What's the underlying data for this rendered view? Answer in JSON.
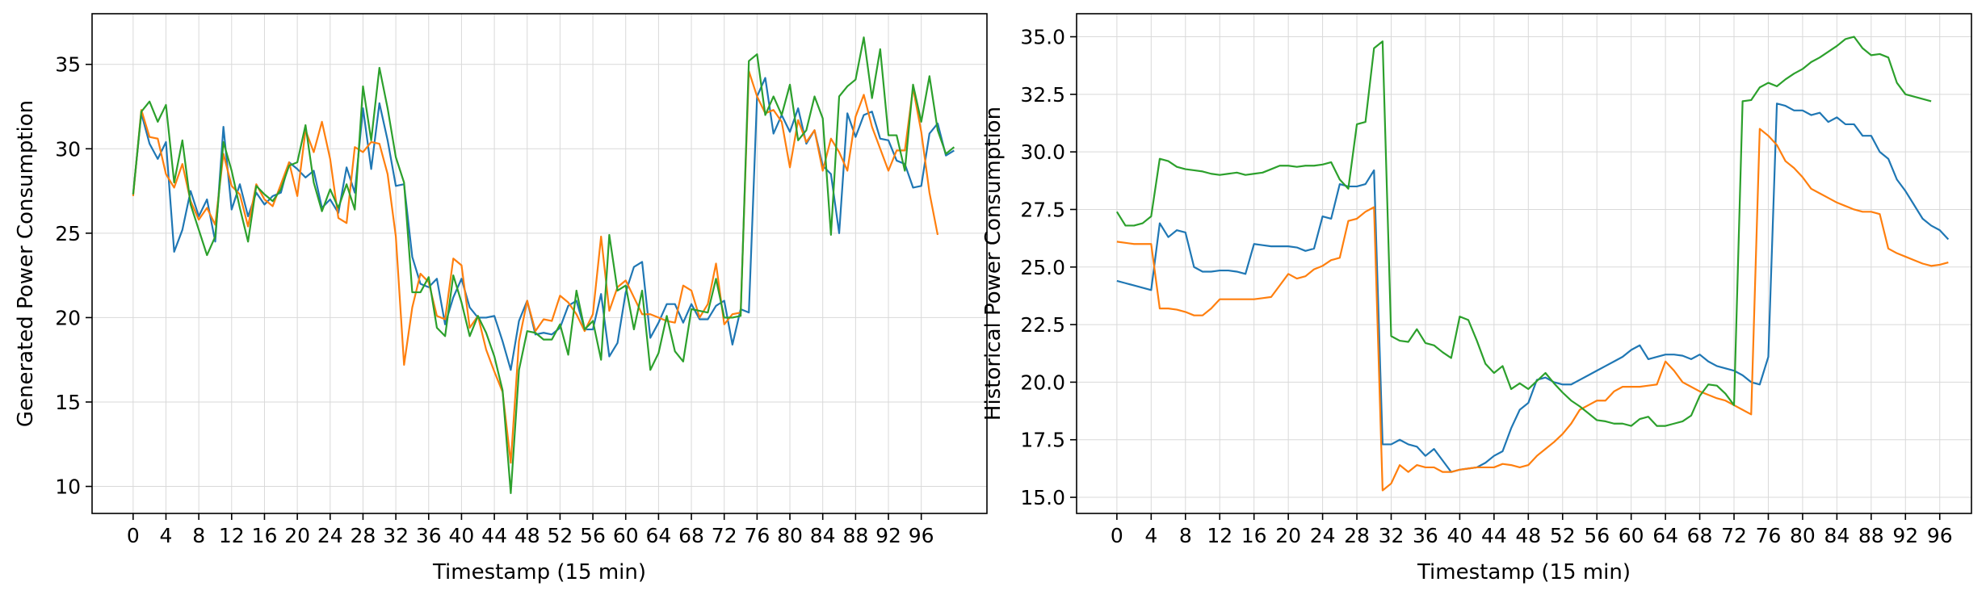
{
  "chart_data": [
    {
      "type": "line",
      "xlabel": "Timestamp (15 min)",
      "ylabel": "Generated Power Consumption",
      "xlim": [
        -5,
        104
      ],
      "ylim": [
        8.4,
        38
      ],
      "x_ticks": [
        0,
        4,
        8,
        12,
        16,
        20,
        24,
        28,
        32,
        36,
        40,
        44,
        48,
        52,
        56,
        60,
        64,
        68,
        72,
        76,
        80,
        84,
        88,
        92,
        96
      ],
      "y_ticks": [
        10,
        15,
        20,
        25,
        30,
        35
      ],
      "grid": true,
      "series": [
        {
          "color": "#1f77b4",
          "values": [
            27.3,
            32.1,
            30.3,
            29.4,
            30.4,
            23.9,
            25.2,
            27.5,
            26.0,
            27.0,
            24.5,
            31.3,
            26.4,
            27.9,
            26.0,
            27.4,
            26.7,
            27.2,
            27.4,
            29.2,
            28.8,
            28.3,
            28.7,
            26.5,
            27.0,
            26.2,
            28.9,
            27.4,
            32.4,
            28.8,
            32.7,
            30.5,
            27.8,
            27.9,
            23.6,
            22.0,
            21.8,
            22.3,
            19.6,
            21.2,
            22.3,
            20.6,
            20.0,
            20.0,
            20.1,
            18.6,
            16.9,
            19.8,
            21.0,
            19.0,
            19.1,
            19.0,
            19.4,
            20.7,
            21.0,
            19.3,
            19.3,
            21.4,
            17.7,
            18.5,
            21.5,
            23.0,
            23.3,
            18.8,
            19.7,
            20.8,
            20.8,
            19.7,
            20.8,
            19.9,
            19.9,
            20.7,
            21.0,
            18.4,
            20.5,
            20.3,
            33.1,
            34.2,
            30.9,
            32.0,
            31.0,
            32.4,
            30.3,
            31.1,
            29.0,
            28.5,
            25.0,
            32.1,
            30.7,
            32.0,
            32.2,
            30.6,
            30.5,
            29.3,
            29.1,
            27.7,
            27.8,
            30.9,
            31.5,
            29.6,
            29.9
          ]
        },
        {
          "color": "#ff7f0e",
          "values": [
            27.2,
            32.3,
            30.7,
            30.6,
            28.5,
            27.7,
            29.1,
            26.9,
            25.8,
            26.5,
            25.5,
            29.7,
            27.8,
            27.3,
            25.4,
            27.9,
            27.0,
            26.6,
            27.9,
            29.2,
            27.2,
            31.1,
            29.8,
            31.6,
            29.4,
            25.9,
            25.6,
            30.1,
            29.8,
            30.4,
            30.3,
            28.5,
            24.8,
            17.2,
            20.6,
            22.6,
            22.1,
            20.1,
            19.9,
            23.5,
            23.1,
            19.4,
            20.1,
            18.1,
            16.8,
            15.6,
            11.4,
            18.6,
            21.0,
            19.2,
            19.9,
            19.8,
            21.3,
            20.9,
            20.2,
            19.2,
            20.2,
            24.8,
            20.4,
            21.8,
            22.2,
            21.2,
            20.2,
            20.2,
            20.0,
            19.8,
            19.7,
            21.9,
            21.6,
            20.0,
            20.8,
            23.2,
            19.6,
            20.2,
            20.3,
            34.6,
            33.1,
            32.1,
            32.3,
            31.6,
            28.9,
            31.7,
            30.4,
            31.1,
            28.7,
            30.6,
            29.8,
            28.7,
            31.9,
            33.2,
            31.3,
            30.0,
            28.7,
            29.9,
            29.9,
            33.6,
            31.0,
            27.4,
            24.9
          ]
        },
        {
          "color": "#2ca02c",
          "values": [
            27.3,
            32.2,
            32.8,
            31.6,
            32.6,
            28.0,
            30.5,
            26.7,
            25.2,
            23.7,
            24.8,
            30.4,
            28.7,
            26.5,
            24.5,
            27.8,
            27.3,
            26.9,
            27.6,
            29.0,
            29.2,
            31.4,
            28.0,
            26.3,
            27.6,
            26.5,
            27.9,
            26.4,
            33.7,
            30.5,
            34.8,
            32.4,
            29.5,
            28.0,
            21.5,
            21.5,
            22.4,
            19.4,
            18.9,
            22.5,
            20.9,
            18.9,
            20.1,
            19.1,
            17.7,
            15.7,
            9.6,
            16.9,
            19.2,
            19.1,
            18.7,
            18.7,
            19.6,
            17.8,
            21.6,
            19.3,
            19.8,
            17.5,
            24.9,
            21.6,
            21.9,
            19.3,
            21.6,
            16.9,
            17.9,
            20.1,
            18.0,
            17.4,
            20.5,
            20.4,
            20.3,
            22.3,
            20.0,
            20.0,
            20.1,
            35.2,
            35.6,
            32.0,
            33.1,
            32.0,
            33.8,
            30.5,
            31.1,
            33.1,
            31.8,
            24.9,
            33.1,
            33.7,
            34.1,
            36.6,
            33.0,
            35.9,
            30.8,
            30.8,
            28.7,
            33.8,
            31.6,
            34.3,
            31.1,
            29.7,
            30.1
          ]
        }
      ]
    },
    {
      "type": "line",
      "xlabel": "Timestamp (15 min)",
      "ylabel": "Historical Power Consumption",
      "xlim": [
        -4.7,
        99.7
      ],
      "ylim": [
        14.3,
        36.0
      ],
      "x_ticks": [
        0,
        4,
        8,
        12,
        16,
        20,
        24,
        28,
        32,
        36,
        40,
        44,
        48,
        52,
        56,
        60,
        64,
        68,
        72,
        76,
        80,
        84,
        88,
        92,
        96
      ],
      "y_ticks": [
        "15.0",
        "17.5",
        "20.0",
        "22.5",
        "25.0",
        "27.5",
        "30.0",
        "32.5",
        "35.0"
      ],
      "grid": true,
      "series": [
        {
          "color": "#1f77b4",
          "values": [
            24.4,
            24.3,
            24.2,
            24.1,
            24.0,
            26.9,
            26.3,
            26.6,
            26.5,
            25.0,
            24.8,
            24.8,
            24.85,
            24.85,
            24.8,
            24.7,
            26.0,
            25.95,
            25.9,
            25.9,
            25.9,
            25.85,
            25.7,
            25.8,
            27.2,
            27.1,
            28.6,
            28.5,
            28.5,
            28.6,
            29.2,
            17.3,
            17.3,
            17.5,
            17.3,
            17.2,
            16.8,
            17.1,
            16.6,
            16.1,
            16.2,
            16.25,
            16.3,
            16.5,
            16.8,
            17.0,
            18.0,
            18.8,
            19.1,
            20.1,
            20.2,
            20.0,
            19.9,
            19.9,
            20.1,
            20.3,
            20.5,
            20.7,
            20.9,
            21.1,
            21.4,
            21.6,
            21.0,
            21.1,
            21.2,
            21.2,
            21.15,
            21.0,
            21.2,
            20.9,
            20.7,
            20.6,
            20.5,
            20.3,
            20.0,
            19.9,
            21.1,
            32.1,
            32.0,
            31.8,
            31.8,
            31.6,
            31.7,
            31.3,
            31.5,
            31.2,
            31.2,
            30.7,
            30.7,
            30.0,
            29.7,
            28.8,
            28.3,
            27.7,
            27.1,
            26.8,
            26.6,
            26.2
          ]
        },
        {
          "color": "#ff7f0e",
          "values": [
            26.1,
            26.05,
            26.0,
            26.0,
            26.0,
            23.2,
            23.2,
            23.15,
            23.05,
            22.9,
            22.9,
            23.2,
            23.6,
            23.6,
            23.6,
            23.6,
            23.6,
            23.65,
            23.7,
            24.2,
            24.7,
            24.5,
            24.6,
            24.9,
            25.05,
            25.3,
            25.4,
            27.0,
            27.1,
            27.4,
            27.6,
            15.3,
            15.6,
            16.4,
            16.1,
            16.4,
            16.3,
            16.3,
            16.1,
            16.1,
            16.2,
            16.25,
            16.3,
            16.3,
            16.3,
            16.45,
            16.4,
            16.3,
            16.4,
            16.8,
            17.1,
            17.4,
            17.75,
            18.2,
            18.8,
            19.0,
            19.2,
            19.2,
            19.6,
            19.8,
            19.8,
            19.8,
            19.85,
            19.9,
            20.9,
            20.5,
            20.0,
            19.8,
            19.6,
            19.45,
            19.3,
            19.2,
            19.0,
            18.8,
            18.6,
            31.0,
            30.7,
            30.3,
            29.6,
            29.3,
            28.9,
            28.4,
            28.2,
            28.0,
            27.8,
            27.65,
            27.5,
            27.4,
            27.4,
            27.3,
            25.8,
            25.6,
            25.45,
            25.3,
            25.15,
            25.05,
            25.1,
            25.2
          ]
        },
        {
          "color": "#2ca02c",
          "values": [
            27.4,
            26.8,
            26.8,
            26.9,
            27.2,
            29.7,
            29.6,
            29.35,
            29.25,
            29.2,
            29.15,
            29.05,
            29.0,
            29.05,
            29.1,
            29.0,
            29.05,
            29.1,
            29.25,
            29.4,
            29.4,
            29.35,
            29.4,
            29.4,
            29.45,
            29.55,
            28.8,
            28.4,
            31.2,
            31.3,
            34.5,
            34.8,
            22.0,
            21.8,
            21.75,
            22.3,
            21.7,
            21.6,
            21.3,
            21.05,
            22.85,
            22.7,
            21.8,
            20.8,
            20.4,
            20.7,
            19.7,
            19.95,
            19.7,
            20.05,
            20.4,
            19.95,
            19.55,
            19.2,
            18.95,
            18.65,
            18.35,
            18.3,
            18.2,
            18.2,
            18.1,
            18.4,
            18.5,
            18.1,
            18.1,
            18.2,
            18.3,
            18.55,
            19.4,
            19.9,
            19.85,
            19.5,
            19.0,
            32.2,
            32.25,
            32.8,
            33.0,
            32.85,
            33.15,
            33.4,
            33.6,
            33.9,
            34.1,
            34.35,
            34.6,
            34.9,
            35.0,
            34.5,
            34.2,
            34.25,
            34.1,
            33.0,
            32.5,
            32.4,
            32.3,
            32.2
          ]
        }
      ]
    }
  ]
}
